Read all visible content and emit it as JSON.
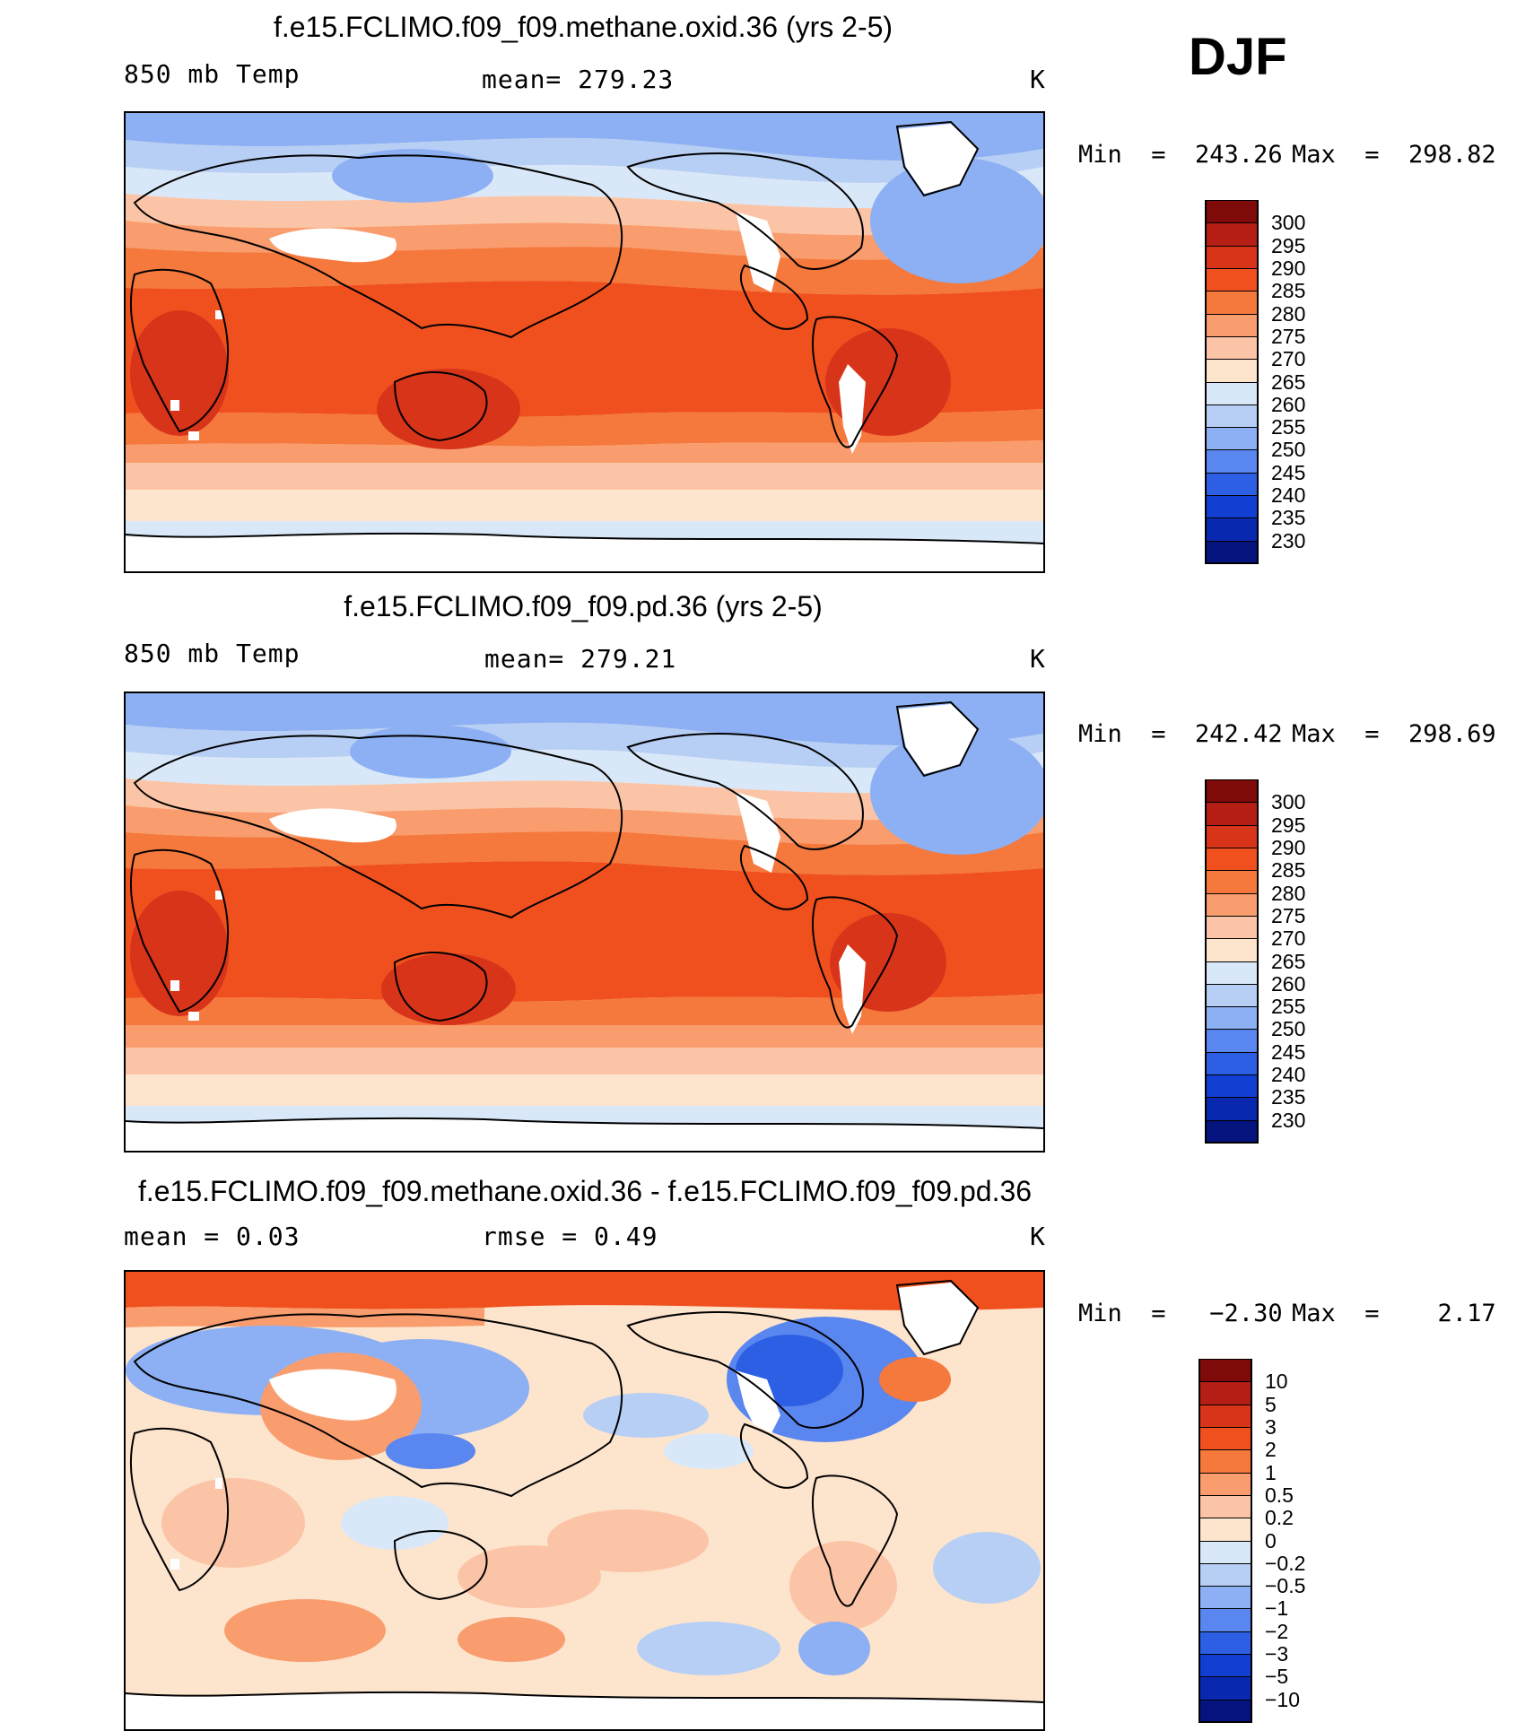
{
  "season": "DJF",
  "panels": [
    {
      "title": "f.e15.FCLIMO.f09_f09.methane.oxid.36 (yrs 2-5)",
      "left": "850 mb Temp",
      "center": "mean= 279.23",
      "units": "K",
      "min_label": "Min  =  243.26",
      "max_label": "Max  =  298.82",
      "colorbar": {
        "colors": [
          "#7f0a0a",
          "#b41e14",
          "#d7341a",
          "#f0501e",
          "#f5783c",
          "#f99d6e",
          "#fcc4a6",
          "#fde4cd",
          "#d9e8f8",
          "#b7cff5",
          "#8cb0f3",
          "#5a86ef",
          "#2d5fe5",
          "#103fd2",
          "#0828b0",
          "#04137d"
        ],
        "labels": [
          "300",
          "295",
          "290",
          "285",
          "280",
          "275",
          "270",
          "265",
          "260",
          "255",
          "250",
          "245",
          "240",
          "235",
          "230"
        ]
      }
    },
    {
      "title": "f.e15.FCLIMO.f09_f09.pd.36 (yrs 2-5)",
      "left": "850 mb Temp",
      "center": "mean= 279.21",
      "units": "K",
      "min_label": "Min  =  242.42",
      "max_label": "Max  =  298.69",
      "colorbar": {
        "colors": [
          "#7f0a0a",
          "#b41e14",
          "#d7341a",
          "#f0501e",
          "#f5783c",
          "#f99d6e",
          "#fcc4a6",
          "#fde4cd",
          "#d9e8f8",
          "#b7cff5",
          "#8cb0f3",
          "#5a86ef",
          "#2d5fe5",
          "#103fd2",
          "#0828b0",
          "#04137d"
        ],
        "labels": [
          "300",
          "295",
          "290",
          "285",
          "280",
          "275",
          "270",
          "265",
          "260",
          "255",
          "250",
          "245",
          "240",
          "235",
          "230"
        ]
      }
    },
    {
      "title": "f.e15.FCLIMO.f09_f09.methane.oxid.36 - f.e15.FCLIMO.f09_f09.pd.36",
      "left": "mean =    0.03",
      "center": "rmse =    0.49",
      "units": "K",
      "min_label": "Min  =   −2.30",
      "max_label": "Max  =    2.17",
      "colorbar": {
        "colors": [
          "#7f0a0a",
          "#b41e14",
          "#d7341a",
          "#f0501e",
          "#f5783c",
          "#f99d6e",
          "#fcc4a6",
          "#fde4cd",
          "#d9e8f8",
          "#b7cff5",
          "#8cb0f3",
          "#5a86ef",
          "#2d5fe5",
          "#103fd2",
          "#0828b0",
          "#04137d"
        ],
        "labels": [
          "10",
          "5",
          "3",
          "2",
          "1",
          "0.5",
          "0.2",
          "0",
          "−0.2",
          "−0.5",
          "−1",
          "−2",
          "−3",
          "−5",
          "−10"
        ]
      }
    }
  ]
}
